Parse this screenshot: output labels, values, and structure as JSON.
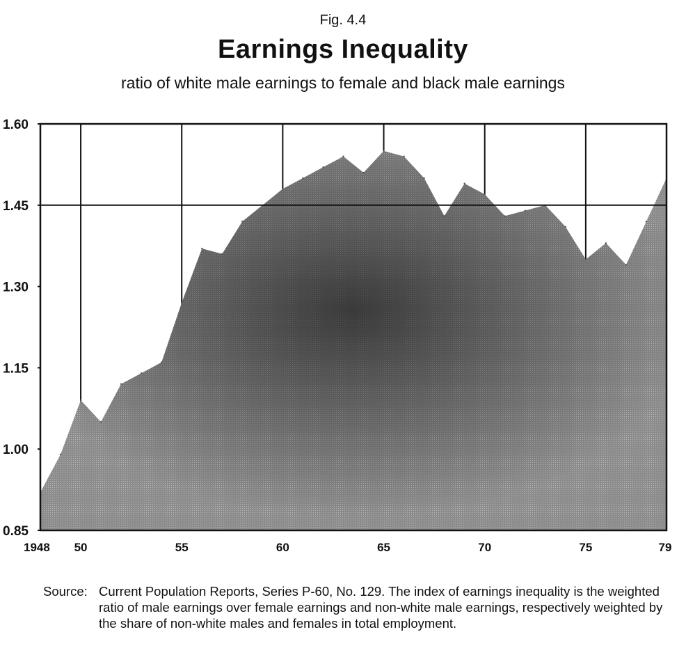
{
  "figure": {
    "label": "Fig. 4.4",
    "title": "Earnings Inequality",
    "subtitle": "ratio of white male earnings to female and black male earnings"
  },
  "source": {
    "head": "Source:",
    "body": "Current Population Reports, Series P-60, No. 129. The index of earnings inequality is the weighted ratio of male earnings over female earnings and non-white male earnings, respectively weighted by the share of non-white males and females in total employment."
  },
  "chart_data": {
    "type": "area",
    "title": "Earnings Inequality",
    "xlabel": "",
    "ylabel": "",
    "xlim": [
      1948,
      1979
    ],
    "ylim": [
      0.85,
      1.6
    ],
    "y_ticks": [
      0.85,
      1.0,
      1.15,
      1.3,
      1.45,
      1.6
    ],
    "y_tick_labels": [
      "0.85",
      "1.00",
      "1.15",
      "1.30",
      "1.45",
      "1.60"
    ],
    "x_ticks": [
      1948,
      1950,
      1955,
      1960,
      1965,
      1970,
      1975,
      1979
    ],
    "x_tick_labels": [
      "1948",
      "50",
      "55",
      "60",
      "65",
      "70",
      "75",
      "79"
    ],
    "grid": {
      "vertical": [
        1950,
        1955,
        1960,
        1965,
        1970,
        1975
      ],
      "horizontal": [
        1.45
      ]
    },
    "fill_color": "#7a7a7a",
    "x": [
      1948,
      1949,
      1950,
      1951,
      1952,
      1953,
      1954,
      1955,
      1956,
      1957,
      1958,
      1959,
      1960,
      1961,
      1962,
      1963,
      1964,
      1965,
      1966,
      1967,
      1968,
      1969,
      1970,
      1971,
      1972,
      1973,
      1974,
      1975,
      1976,
      1977,
      1978,
      1979
    ],
    "values": [
      0.92,
      0.99,
      1.09,
      1.05,
      1.12,
      1.14,
      1.16,
      1.27,
      1.37,
      1.36,
      1.42,
      1.45,
      1.48,
      1.5,
      1.52,
      1.54,
      1.51,
      1.55,
      1.54,
      1.5,
      1.43,
      1.49,
      1.47,
      1.43,
      1.44,
      1.45,
      1.41,
      1.35,
      1.38,
      1.34,
      1.42,
      1.5
    ]
  }
}
